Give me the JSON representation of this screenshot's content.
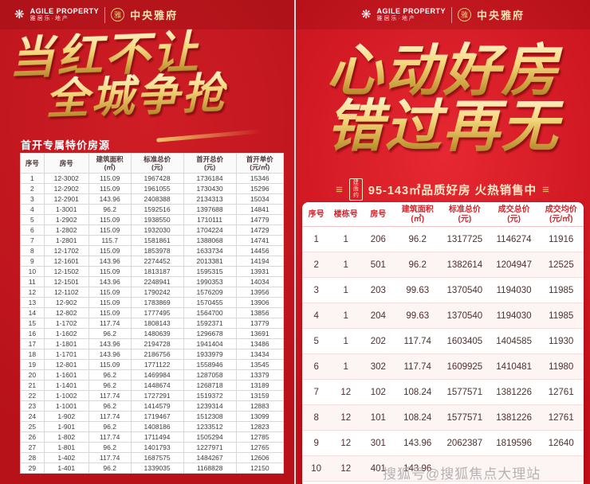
{
  "brand": {
    "logo_en": "AGILE PROPERTY",
    "logo_cn": "雅居乐·地产",
    "project_name": "中央雅府",
    "emblem_char": "雅"
  },
  "colors": {
    "background_red": "#c4141d",
    "gold": "#e8c06a",
    "table_header_red": "#d3242c"
  },
  "left_panel": {
    "headline_line1": "当红不让",
    "headline_line2": "全城争抢",
    "section_label": "首开专属特价房源",
    "table": {
      "headers": [
        "序号",
        "房号",
        "建筑面积\n(㎡)",
        "标准总价\n(元)",
        "首开总价\n(元)",
        "首开单价\n(元/㎡)"
      ],
      "rows": [
        [
          "1",
          "12-3002",
          "115.09",
          "1967428",
          "1736184",
          "15346"
        ],
        [
          "2",
          "12-2902",
          "115.09",
          "1961055",
          "1730430",
          "15296"
        ],
        [
          "3",
          "12-2901",
          "143.96",
          "2408388",
          "2134313",
          "15034"
        ],
        [
          "4",
          "1-3001",
          "96.2",
          "1592516",
          "1397688",
          "14841"
        ],
        [
          "5",
          "1-2902",
          "115.09",
          "1938550",
          "1710111",
          "14779"
        ],
        [
          "6",
          "1-2802",
          "115.09",
          "1932030",
          "1704224",
          "14729"
        ],
        [
          "7",
          "1-2801",
          "115.7",
          "1581861",
          "1388068",
          "14741"
        ],
        [
          "8",
          "12-1702",
          "115.09",
          "1853978",
          "1633734",
          "14456"
        ],
        [
          "9",
          "12-1601",
          "143.96",
          "2274452",
          "2013381",
          "14194"
        ],
        [
          "10",
          "12-1502",
          "115.09",
          "1813187",
          "1595315",
          "13931"
        ],
        [
          "11",
          "12-1501",
          "143.96",
          "2248941",
          "1990353",
          "14034"
        ],
        [
          "12",
          "12-1102",
          "115.09",
          "1790242",
          "1576209",
          "13956"
        ],
        [
          "13",
          "12-902",
          "115.09",
          "1783869",
          "1570455",
          "13906"
        ],
        [
          "14",
          "12-802",
          "115.09",
          "1777495",
          "1564700",
          "13856"
        ],
        [
          "15",
          "1-1702",
          "117.74",
          "1808143",
          "1592371",
          "13779"
        ],
        [
          "16",
          "1-1602",
          "96.2",
          "1480639",
          "1296678",
          "13691"
        ],
        [
          "17",
          "1-1801",
          "143.96",
          "2194728",
          "1941404",
          "13486"
        ],
        [
          "18",
          "1-1701",
          "143.96",
          "2186756",
          "1933979",
          "13434"
        ],
        [
          "19",
          "12-801",
          "115.09",
          "1771122",
          "1558946",
          "13545"
        ],
        [
          "20",
          "1-1601",
          "96.2",
          "1469984",
          "1287058",
          "13379"
        ],
        [
          "21",
          "1-1401",
          "96.2",
          "1448674",
          "1268718",
          "13189"
        ],
        [
          "22",
          "1-1002",
          "117.74",
          "1727291",
          "1519372",
          "13159"
        ],
        [
          "23",
          "1-1001",
          "96.2",
          "1414579",
          "1239314",
          "12883"
        ],
        [
          "24",
          "1-902",
          "117.74",
          "1719467",
          "1512308",
          "13099"
        ],
        [
          "25",
          "1-901",
          "96.2",
          "1408186",
          "1233512",
          "12823"
        ],
        [
          "26",
          "1-802",
          "117.74",
          "1711494",
          "1505294",
          "12785"
        ],
        [
          "27",
          "1-801",
          "96.2",
          "1401793",
          "1227971",
          "12765"
        ],
        [
          "28",
          "1-402",
          "117.74",
          "1687575",
          "1484267",
          "12606"
        ],
        [
          "29",
          "1-401",
          "96.2",
          "1339035",
          "1168828",
          "12150"
        ]
      ]
    }
  },
  "right_panel": {
    "headline_line1": "心动好房",
    "headline_line2": "错过再无",
    "subtitle_deco": "≡",
    "subtitle_prefix": "建面约",
    "subtitle_text": "95-143㎡品质好房 火热销售中",
    "table": {
      "headers": [
        "序号",
        "楼栋号",
        "房号",
        "建筑面积\n(㎡)",
        "标准总价\n(元)",
        "成交总价\n(元)",
        "成交均价\n(元/㎡)"
      ],
      "rows": [
        [
          "1",
          "1",
          "206",
          "96.2",
          "1317725",
          "1146274",
          "11916"
        ],
        [
          "2",
          "1",
          "501",
          "96.2",
          "1382614",
          "1204947",
          "12525"
        ],
        [
          "3",
          "1",
          "203",
          "99.63",
          "1370540",
          "1194030",
          "11985"
        ],
        [
          "4",
          "1",
          "204",
          "99.63",
          "1370540",
          "1194030",
          "11985"
        ],
        [
          "5",
          "1",
          "202",
          "117.74",
          "1603405",
          "1404585",
          "11930"
        ],
        [
          "6",
          "1",
          "302",
          "117.74",
          "1609925",
          "1410481",
          "11980"
        ],
        [
          "7",
          "12",
          "102",
          "108.24",
          "1577571",
          "1381226",
          "12761"
        ],
        [
          "8",
          "12",
          "101",
          "108.24",
          "1577571",
          "1381226",
          "12761"
        ],
        [
          "9",
          "12",
          "301",
          "143.96",
          "2062387",
          "1819596",
          "12640"
        ],
        [
          "10",
          "12",
          "401",
          "143.96",
          "",
          "",
          ""
        ]
      ]
    }
  },
  "watermark": "搜狐号@搜狐焦点大理站"
}
